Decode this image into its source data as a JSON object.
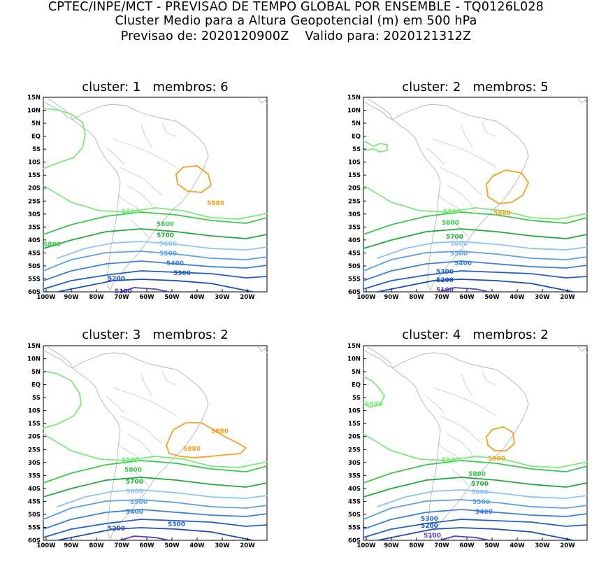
{
  "header": {
    "line1": "CPTEC/INPE/MCT - PREVISAO DE TEMPO GLOBAL POR ENSEMBLE - TQ0126L028",
    "line2": "Cluster Medio para a Altura Geopotencial (m) em 500 hPa",
    "line3": "Previsao de: 2020120900Z    Valido para: 2020121312Z"
  },
  "axes": {
    "lat_labels": [
      "15N",
      "10N",
      "5N",
      "EQ",
      "5S",
      "10S",
      "15S",
      "20S",
      "25S",
      "30S",
      "35S",
      "40S",
      "45S",
      "50S",
      "55S",
      "60S"
    ],
    "lon_labels": [
      "100W",
      "90W",
      "80W",
      "70W",
      "60W",
      "50W",
      "40W",
      "30W",
      "20W"
    ]
  },
  "colors": {
    "5100": "#5a3fb5",
    "5200": "#1d4fb0",
    "5300": "#2060c0",
    "5400": "#3a80d8",
    "5500": "#5aa0e8",
    "5600": "#8cc4f0",
    "5700": "#22a838",
    "5800": "#3cc84a",
    "5840": "#7ce87a",
    "5880": "#f5a020",
    "coast": "#b4b4b4"
  },
  "panels": [
    {
      "title": "cluster: 1   membros: 6",
      "labels": [
        {
          "text": "5840",
          "c": "5840"
        },
        {
          "text": "5800",
          "c": "5800"
        },
        {
          "text": "5700",
          "c": "5700"
        },
        {
          "text": "5600",
          "c": "5600"
        },
        {
          "text": "5500",
          "c": "5500"
        },
        {
          "text": "5400",
          "c": "5400"
        },
        {
          "text": "5300",
          "c": "5300"
        },
        {
          "text": "5200",
          "c": "5200"
        },
        {
          "text": "5100",
          "c": "5100"
        },
        {
          "text": "5880",
          "c": "5880"
        },
        {
          "text": "5800",
          "c": "5800"
        }
      ]
    },
    {
      "title": "cluster: 2   membros: 5",
      "labels": [
        {
          "text": "5840",
          "c": "5840"
        },
        {
          "text": "5800",
          "c": "5800"
        },
        {
          "text": "5700",
          "c": "5700"
        },
        {
          "text": "5600",
          "c": "5600"
        },
        {
          "text": "5500",
          "c": "5500"
        },
        {
          "text": "5400",
          "c": "5400"
        },
        {
          "text": "5300",
          "c": "5300"
        },
        {
          "text": "5200",
          "c": "5200"
        },
        {
          "text": "5100",
          "c": "5100"
        },
        {
          "text": "5880",
          "c": "5880"
        }
      ]
    },
    {
      "title": "cluster: 3   membros: 2",
      "labels": [
        {
          "text": "5840",
          "c": "5840"
        },
        {
          "text": "5800",
          "c": "5800"
        },
        {
          "text": "5700",
          "c": "5700"
        },
        {
          "text": "5600",
          "c": "5600"
        },
        {
          "text": "5500",
          "c": "5500"
        },
        {
          "text": "5400",
          "c": "5400"
        },
        {
          "text": "5300",
          "c": "5300"
        },
        {
          "text": "5200",
          "c": "5200"
        },
        {
          "text": "5880",
          "c": "5880"
        },
        {
          "text": "5880",
          "c": "5880"
        }
      ]
    },
    {
      "title": "cluster: 4   membros: 2",
      "labels": [
        {
          "text": "5840",
          "c": "5840"
        },
        {
          "text": "5800",
          "c": "5800"
        },
        {
          "text": "5700",
          "c": "5700"
        },
        {
          "text": "5600",
          "c": "5600"
        },
        {
          "text": "5500",
          "c": "5500"
        },
        {
          "text": "5400",
          "c": "5400"
        },
        {
          "text": "5300",
          "c": "5300"
        },
        {
          "text": "5200",
          "c": "5200"
        },
        {
          "text": "5100",
          "c": "5100"
        },
        {
          "text": "5880",
          "c": "5880"
        },
        {
          "text": "5840",
          "c": "5840"
        }
      ]
    }
  ]
}
